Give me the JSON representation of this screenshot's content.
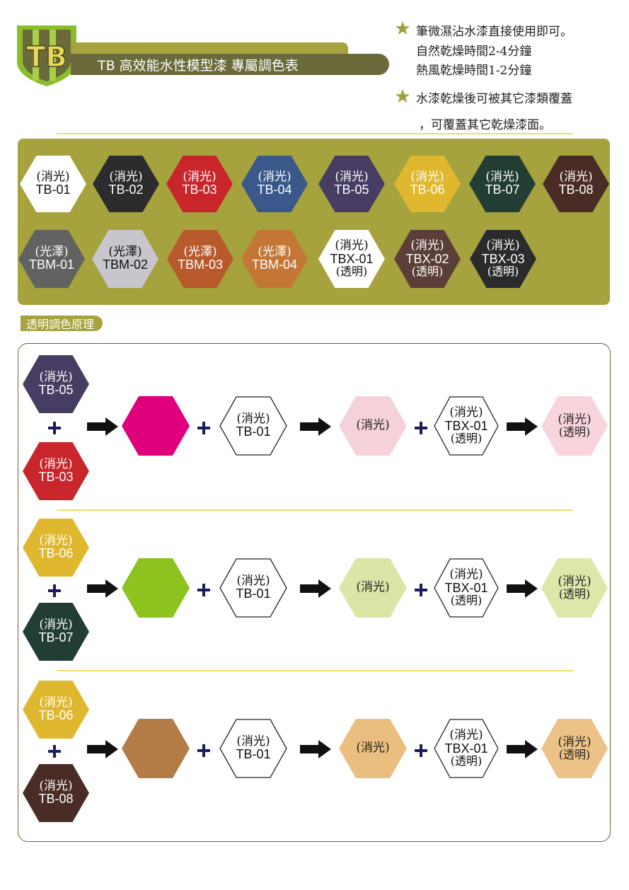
{
  "header": {
    "logo_text": "TB",
    "title": "TB 高效能水性模型漆  專屬調色表"
  },
  "notes": [
    {
      "lines": [
        "筆微濕沾水漆直接使用即可。",
        "自然乾燥時間2-4分鐘",
        "熱風乾燥時間1-2分鐘"
      ]
    },
    {
      "lines": [
        "水漆乾燥後可被其它漆類覆蓋",
        "，可覆蓋其它乾燥漆面。"
      ]
    }
  ],
  "palette": {
    "row1": [
      {
        "finish": "(消光)",
        "code": "TB-01",
        "color": "#ffffff",
        "text": "#111111"
      },
      {
        "finish": "(消光)",
        "code": "TB-02",
        "color": "#2c2c2e",
        "text": "#ffffff"
      },
      {
        "finish": "(消光)",
        "code": "TB-03",
        "color": "#c9262c",
        "text": "#ffffff"
      },
      {
        "finish": "(消光)",
        "code": "TB-04",
        "color": "#3a5889",
        "text": "#ffffff"
      },
      {
        "finish": "(消光)",
        "code": "TB-05",
        "color": "#473d62",
        "text": "#ffffff"
      },
      {
        "finish": "(消光)",
        "code": "TB-06",
        "color": "#e0b830",
        "text": "#ffffff"
      },
      {
        "finish": "(消光)",
        "code": "TB-07",
        "color": "#223e34",
        "text": "#ffffff"
      },
      {
        "finish": "(消光)",
        "code": "TB-08",
        "color": "#4a2c27",
        "text": "#ffffff"
      }
    ],
    "row2": [
      {
        "finish": "(光澤)",
        "code": "TBM-01",
        "color": "#626361",
        "text": "#ffffff",
        "extra": ""
      },
      {
        "finish": "(光澤)",
        "code": "TBM-02",
        "color": "#c6c6cc",
        "text": "#111111",
        "extra": ""
      },
      {
        "finish": "(光澤)",
        "code": "TBM-03",
        "color": "#b85a2c",
        "text": "#ffffff",
        "extra": ""
      },
      {
        "finish": "(光澤)",
        "code": "TBM-04",
        "color": "#c47735",
        "text": "#ffffff",
        "extra": ""
      },
      {
        "finish": "(消光)",
        "code": "TBX-01",
        "color": "#ffffff",
        "text": "#111111",
        "extra": "(透明)"
      },
      {
        "finish": "(消光)",
        "code": "TBX-02",
        "color": "#5a3e37",
        "text": "#ffffff",
        "extra": "(透明)"
      },
      {
        "finish": "(消光)",
        "code": "TBX-03",
        "color": "#2a2b2c",
        "text": "#ffffff",
        "extra": "(透明)"
      }
    ]
  },
  "section_label": "透明調色原理",
  "mixes": [
    {
      "top": {
        "finish": "(消光)",
        "code": "TB-05",
        "color": "#473d62"
      },
      "bottom": {
        "finish": "(消光)",
        "code": "TB-03",
        "color": "#c9262c"
      },
      "mixed_color": "#e0007c",
      "white": {
        "finish": "(消光)",
        "code": "TB-01"
      },
      "result1": {
        "label": "(消光)",
        "color": "#f5d2da"
      },
      "clear": {
        "finish": "(消光)",
        "code": "TBX-01",
        "extra": "(透明)"
      },
      "final": {
        "finish": "(消光)",
        "extra": "(透明)",
        "color": "#f8d5dd"
      }
    },
    {
      "top": {
        "finish": "(消光)",
        "code": "TB-06",
        "color": "#e0b830"
      },
      "bottom": {
        "finish": "(消光)",
        "code": "TB-07",
        "color": "#223e34"
      },
      "mixed_color": "#8cc31f",
      "white": {
        "finish": "(消光)",
        "code": "TB-01"
      },
      "result1": {
        "label": "(消光)",
        "color": "#d9e6a6"
      },
      "clear": {
        "finish": "(消光)",
        "code": "TBX-01",
        "extra": "(透明)"
      },
      "final": {
        "finish": "(消光)",
        "extra": "(透明)",
        "color": "#dbe8aa"
      }
    },
    {
      "top": {
        "finish": "(消光)",
        "code": "TB-06",
        "color": "#e0b830"
      },
      "bottom": {
        "finish": "(消光)",
        "code": "TB-08",
        "color": "#4a2c27"
      },
      "mixed_color": "#b47c46",
      "white": {
        "finish": "(消光)",
        "code": "TB-01"
      },
      "result1": {
        "label": "(消光)",
        "color": "#eabe7e"
      },
      "clear": {
        "finish": "(消光)",
        "code": "TBX-01",
        "extra": "(透明)"
      },
      "final": {
        "finish": "(消光)",
        "extra": "(透明)",
        "color": "#ecc286"
      }
    }
  ],
  "colors": {
    "olive": "#a6a23e",
    "olive_dark": "#6b6a3a",
    "yellow_line": "#e8e066",
    "frame": "#7a5a3a",
    "star": "#9ea33c"
  }
}
